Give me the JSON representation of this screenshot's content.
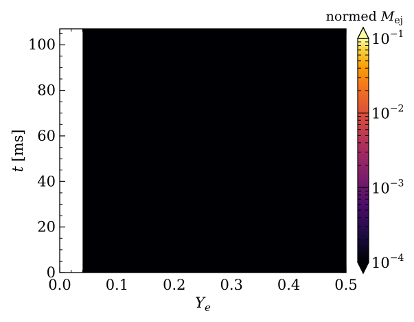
{
  "chart_data": {
    "type": "heatmap",
    "x_label": "Y",
    "x_label_sub": "e",
    "y_label": "t",
    "y_label_unit": "[ms]",
    "xlim": [
      0.0,
      0.5
    ],
    "ylim": [
      0,
      107
    ],
    "x_ticks": [
      0.0,
      0.1,
      0.2,
      0.3,
      0.4,
      0.5
    ],
    "x_tick_labels": [
      "0.0",
      "0.1",
      "0.2",
      "0.3",
      "0.4",
      "0.5"
    ],
    "y_ticks": [
      0,
      20,
      40,
      60,
      80,
      100
    ],
    "y_tick_labels": [
      "0",
      "20",
      "40",
      "60",
      "80",
      "100"
    ],
    "filled_region": {
      "x_start": 0.04,
      "x_end": 0.5,
      "y_start": 0,
      "y_end": 107,
      "value_class": "at or below minimum (10^-4)"
    },
    "colorbar": {
      "title": "normed M",
      "title_sub": "ej",
      "colormap": "inferno",
      "scale": "log",
      "range": [
        0.0001,
        0.1
      ],
      "ticks": [
        {
          "base": "10",
          "exp": "−1",
          "value": 0.1
        },
        {
          "base": "10",
          "exp": "−2",
          "value": 0.01
        },
        {
          "base": "10",
          "exp": "−3",
          "value": 0.001
        },
        {
          "base": "10",
          "exp": "−4",
          "value": 0.0001
        }
      ],
      "extend": "both"
    },
    "grid": false
  }
}
